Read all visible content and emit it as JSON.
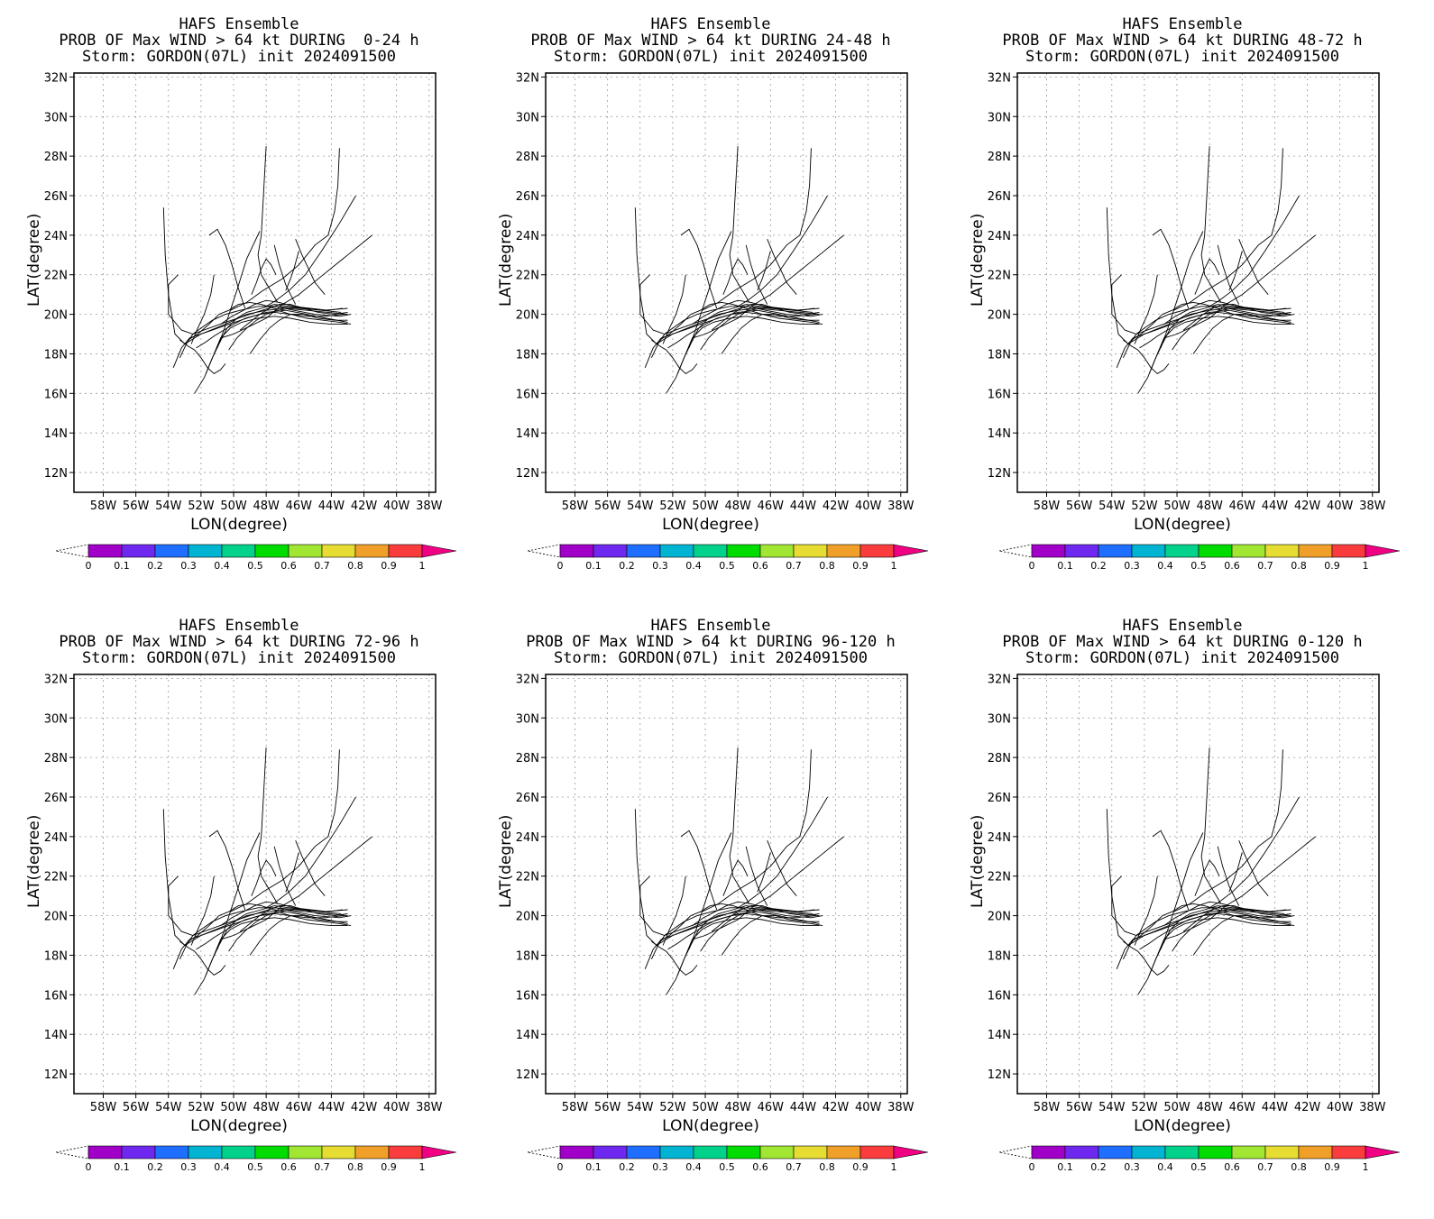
{
  "chart_data": [
    {
      "type": "line",
      "title": [
        "HAFS Ensemble",
        "PROB OF Max WIND > 64 kt DURING  0-24 h",
        "Storm: GORDON(07L) init 2024091500"
      ],
      "xlabel": "LON(degree)",
      "ylabel": "LAT(degree)"
    },
    {
      "type": "line",
      "title": [
        "HAFS Ensemble",
        "PROB OF Max WIND > 64 kt DURING 24-48 h",
        "Storm: GORDON(07L) init 2024091500"
      ],
      "xlabel": "LON(degree)",
      "ylabel": "LAT(degree)"
    },
    {
      "type": "line",
      "title": [
        "HAFS Ensemble",
        "PROB OF Max WIND > 64 kt DURING 48-72 h",
        "Storm: GORDON(07L) init 2024091500"
      ],
      "xlabel": "LON(degree)",
      "ylabel": "LAT(degree)"
    },
    {
      "type": "line",
      "title": [
        "HAFS Ensemble",
        "PROB OF Max WIND > 64 kt DURING 72-96 h",
        "Storm: GORDON(07L) init 2024091500"
      ],
      "xlabel": "LON(degree)",
      "ylabel": "LAT(degree)"
    },
    {
      "type": "line",
      "title": [
        "HAFS Ensemble",
        "PROB OF Max WIND > 64 kt DURING 96-120 h",
        "Storm: GORDON(07L) init 2024091500"
      ],
      "xlabel": "LON(degree)",
      "ylabel": "LAT(degree)"
    },
    {
      "type": "line",
      "title": [
        "HAFS Ensemble",
        "PROB OF Max WIND > 64 kt DURING 0-120 h",
        "Storm: GORDON(07L) init 2024091500"
      ],
      "xlabel": "LON(degree)",
      "ylabel": "LAT(degree)"
    }
  ],
  "axes": {
    "xlim": [
      -59.8,
      -37.6
    ],
    "ylim": [
      11,
      32.2
    ],
    "x_ticks": [
      -58,
      -56,
      -54,
      -52,
      -50,
      -48,
      -46,
      -44,
      -42,
      -40,
      -38
    ],
    "x_tick_labels": [
      "58W",
      "56W",
      "54W",
      "52W",
      "50W",
      "48W",
      "46W",
      "44W",
      "42W",
      "40W",
      "38W"
    ],
    "y_ticks": [
      12,
      14,
      16,
      18,
      20,
      22,
      24,
      26,
      28,
      30,
      32
    ],
    "y_tick_labels": [
      "12N",
      "14N",
      "16N",
      "18N",
      "20N",
      "22N",
      "24N",
      "26N",
      "28N",
      "30N",
      "32N"
    ],
    "grid": true
  },
  "colorbar": {
    "levels": [
      "0",
      "0.1",
      "0.2",
      "0.3",
      "0.4",
      "0.5",
      "0.6",
      "0.7",
      "0.8",
      "0.9",
      "1"
    ],
    "colors": [
      "#a000c8",
      "#6e28f0",
      "#1e6eff",
      "#00b4d2",
      "#00d28c",
      "#00dc00",
      "#a0e632",
      "#e6dc32",
      "#f0a028",
      "#fa3c3c",
      "#f00082"
    ]
  },
  "tracks": [
    {
      "lon": [
        -54.3,
        -54.2,
        -54.0,
        -53.8,
        -53.6,
        -53.0,
        -52.0,
        -50.5,
        -49.2,
        -48.0,
        -46.8,
        -45.5,
        -44.2,
        -43.0
      ],
      "lat": [
        25.4,
        23.0,
        21.0,
        20.0,
        19.0,
        18.5,
        19.0,
        19.5,
        20.0,
        20.2,
        20.3,
        20.2,
        20.1,
        20.0
      ]
    },
    {
      "lon": [
        -53.4,
        -54.0,
        -54.0,
        -53.2,
        -52.5,
        -51.5,
        -50.5,
        -49.0,
        -47.5,
        -46.0,
        -44.5,
        -43.0
      ],
      "lat": [
        22.0,
        21.5,
        20.0,
        19.2,
        19.0,
        19.3,
        19.6,
        20.0,
        20.4,
        20.3,
        20.2,
        20.3
      ]
    },
    {
      "lon": [
        -53.7,
        -53.2,
        -52.7,
        -52.0,
        -51.3,
        -50.3,
        -49.2,
        -48.0,
        -46.8,
        -45.5,
        -44.3,
        -43.0
      ],
      "lat": [
        17.3,
        18.3,
        18.8,
        19.0,
        19.2,
        19.5,
        19.8,
        20.1,
        20.2,
        20.0,
        19.8,
        19.6
      ]
    },
    {
      "lon": [
        -53.3,
        -52.9,
        -52.5,
        -52.0,
        -51.3,
        -50.5,
        -49.6,
        -48.5,
        -47.4,
        -46.3,
        -45.0,
        -43.5,
        -42.8
      ],
      "lat": [
        17.8,
        18.5,
        19.0,
        19.3,
        19.7,
        20.0,
        20.2,
        20.4,
        20.4,
        20.2,
        20.0,
        19.9,
        20.0
      ]
    },
    {
      "lon": [
        -52.4,
        -51.8,
        -51.3,
        -50.8,
        -50.2,
        -49.5,
        -48.5,
        -47.5,
        -46.5,
        -45.3,
        -44.0,
        -43.0
      ],
      "lat": [
        16.0,
        16.8,
        17.8,
        18.8,
        19.3,
        19.6,
        19.8,
        19.9,
        19.8,
        19.6,
        19.5,
        19.5
      ]
    },
    {
      "lon": [
        -51.7,
        -51.3,
        -50.9,
        -50.4,
        -49.8,
        -49.2,
        -48.3,
        -47.5,
        -46.6,
        -45.6,
        -44.6,
        -43.4
      ],
      "lat": [
        17.0,
        17.8,
        18.5,
        19.3,
        19.8,
        20.1,
        20.3,
        20.5,
        20.4,
        20.3,
        20.2,
        20.1
      ]
    },
    {
      "lon": [
        -52.8,
        -52.2,
        -51.5,
        -50.9,
        -50.3,
        -49.7,
        -49.0,
        -48.3,
        -47.5,
        -46.8
      ],
      "lat": [
        18.7,
        19.0,
        19.5,
        20.0,
        20.2,
        20.5,
        20.6,
        20.5,
        20.3,
        20.2
      ]
    },
    {
      "lon": [
        -49.3,
        -49.7,
        -50.1,
        -50.5,
        -51.0,
        -51.5
      ],
      "lat": [
        20.3,
        21.3,
        22.5,
        23.5,
        24.3,
        24.0
      ]
    },
    {
      "lon": [
        -48.0,
        -48.2,
        -48.3,
        -48.5,
        -48.3,
        -47.8,
        -47.3
      ],
      "lat": [
        28.5,
        25.5,
        24.0,
        23.0,
        22.0,
        21.3,
        20.6
      ]
    },
    {
      "lon": [
        -43.5,
        -43.6,
        -43.8,
        -44.2,
        -45.0,
        -46.0,
        -47.0,
        -48.2,
        -49.2,
        -50.2
      ],
      "lat": [
        28.4,
        26.5,
        25.2,
        24.0,
        23.5,
        22.5,
        21.8,
        21.2,
        20.6,
        20.2
      ]
    },
    {
      "lon": [
        -42.5,
        -43.5,
        -44.6,
        -45.6,
        -46.6,
        -47.4,
        -48.0
      ],
      "lat": [
        26.0,
        24.6,
        23.2,
        22.0,
        21.2,
        20.7,
        20.4
      ]
    },
    {
      "lon": [
        -41.5,
        -43.0,
        -44.5,
        -46.0,
        -47.0,
        -48.0,
        -49.0,
        -50.0,
        -50.8
      ],
      "lat": [
        24.0,
        23.0,
        22.0,
        21.0,
        20.5,
        19.8,
        19.4,
        19.0,
        18.8
      ]
    },
    {
      "lon": [
        -51.2,
        -51.4,
        -51.8,
        -52.2,
        -52.6
      ],
      "lat": [
        22.0,
        21.0,
        20.0,
        19.3,
        18.5
      ]
    },
    {
      "lon": [
        -47.5,
        -47.2,
        -46.8,
        -46.5,
        -46.2
      ],
      "lat": [
        23.5,
        22.5,
        21.5,
        21.0,
        20.5
      ]
    },
    {
      "lon": [
        -46.2,
        -45.8,
        -45.4,
        -45.0,
        -44.4
      ],
      "lat": [
        23.8,
        23.0,
        22.3,
        21.6,
        21.0
      ]
    },
    {
      "lon": [
        -50.3,
        -49.8,
        -49.2,
        -48.6,
        -48.0,
        -47.3,
        -46.5,
        -45.5,
        -44.5,
        -43.5,
        -42.8
      ],
      "lat": [
        18.2,
        18.8,
        19.3,
        19.7,
        20.0,
        20.2,
        20.0,
        19.8,
        19.7,
        19.6,
        19.5
      ]
    },
    {
      "lon": [
        -49.0,
        -48.4,
        -47.8,
        -47.2,
        -46.5,
        -45.7,
        -44.8,
        -43.8,
        -43.0
      ],
      "lat": [
        18.0,
        18.7,
        19.3,
        19.7,
        20.0,
        20.0,
        19.8,
        19.7,
        19.7
      ]
    },
    {
      "lon": [
        -50.8,
        -50.1,
        -49.4,
        -48.7,
        -48.0,
        -47.2,
        -46.3,
        -45.3,
        -44.2,
        -43.3
      ],
      "lat": [
        19.5,
        19.9,
        20.2,
        20.5,
        20.7,
        20.6,
        20.4,
        20.3,
        20.2,
        20.3
      ]
    },
    {
      "lon": [
        -49.6,
        -49.0,
        -48.4,
        -47.8,
        -47.2,
        -46.5,
        -45.7,
        -44.8,
        -43.8,
        -43.0
      ],
      "lat": [
        19.2,
        19.6,
        20.0,
        20.3,
        20.5,
        20.5,
        20.3,
        20.1,
        20.0,
        20.1
      ]
    },
    {
      "lon": [
        -52.3,
        -51.7,
        -51.2,
        -50.6,
        -50.0,
        -49.3,
        -48.4,
        -47.5,
        -46.5,
        -45.5,
        -44.4,
        -43.2
      ],
      "lat": [
        18.3,
        18.6,
        18.9,
        19.2,
        19.5,
        19.8,
        20.0,
        20.1,
        20.0,
        19.9,
        19.9,
        20.0
      ]
    },
    {
      "lon": [
        -50.5,
        -50.8,
        -51.2,
        -51.6,
        -52.0,
        -52.4,
        -52.8,
        -53.3
      ],
      "lat": [
        17.5,
        17.2,
        17.0,
        17.3,
        17.8,
        18.2,
        18.4,
        18.7
      ]
    },
    {
      "lon": [
        -51.0,
        -50.6,
        -50.2,
        -49.8,
        -49.5,
        -49.2,
        -48.8,
        -48.4
      ],
      "lat": [
        18.3,
        19.2,
        20.2,
        21.2,
        22.0,
        22.8,
        23.5,
        24.2
      ]
    },
    {
      "lon": [
        -48.9,
        -48.6,
        -48.3,
        -48.0,
        -47.7,
        -47.4
      ],
      "lat": [
        21.0,
        21.6,
        22.3,
        22.8,
        22.5,
        22.0
      ]
    },
    {
      "lon": [
        -46.8,
        -46.5,
        -46.3,
        -46.2,
        -46.0
      ],
      "lat": [
        21.2,
        21.8,
        22.3,
        22.6,
        23.2
      ]
    }
  ]
}
